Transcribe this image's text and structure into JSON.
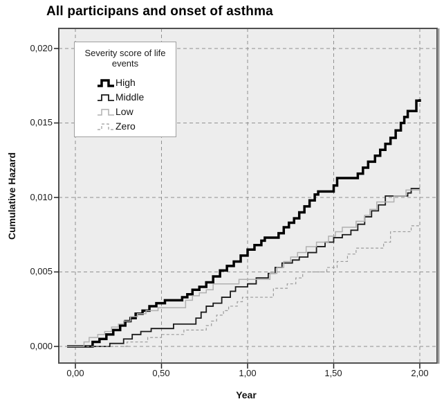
{
  "title": "All participans and onset of asthma",
  "axes": {
    "x": {
      "label": "Year",
      "ticks": [
        "0,00",
        "0,50",
        "1,00",
        "1,50",
        "2,00"
      ],
      "values": [
        0,
        0.5,
        1,
        1.5,
        2
      ]
    },
    "y": {
      "label": "Cumulative Hazard",
      "ticks": [
        "0,020",
        "0,015",
        "0,010",
        "0,005",
        "0,000"
      ],
      "values": [
        0.02,
        0.015,
        0.01,
        0.005,
        0
      ]
    }
  },
  "legend": {
    "title": "Severity score of life events",
    "entries": [
      "High",
      "Middle",
      "Low",
      "Zero"
    ]
  },
  "colors": {
    "panel_background": "#ededed",
    "gridline": "#909090",
    "frame": "#4f4f4f",
    "frame_right_edge": "#9b9b9b",
    "tick": "#222222"
  },
  "chart_data": {
    "type": "line",
    "subtype": "step-function-cumulative-hazard",
    "title": "All participans and onset of asthma",
    "xlabel": "Year",
    "ylabel": "Cumulative Hazard",
    "xlim": [
      0,
      2
    ],
    "ylim": [
      0,
      0.02
    ],
    "x_ticks": [
      0,
      0.5,
      1,
      1.5,
      2
    ],
    "y_ticks": [
      0,
      0.005,
      0.01,
      0.015,
      0.02
    ],
    "grid": "dashed-both-axes",
    "legend_position": "top-left-inside",
    "legend_title": "Severity score of life events",
    "series": [
      {
        "name": "High",
        "color": "#000000",
        "width": 3.5,
        "dash": null,
        "points": [
          [
            0,
            0
          ],
          [
            0.1,
            0.0003
          ],
          [
            0.14,
            0.0005
          ],
          [
            0.18,
            0.0008
          ],
          [
            0.22,
            0.0011
          ],
          [
            0.26,
            0.0014
          ],
          [
            0.29,
            0.0017
          ],
          [
            0.32,
            0.0019
          ],
          [
            0.35,
            0.0022
          ],
          [
            0.39,
            0.0024
          ],
          [
            0.43,
            0.0027
          ],
          [
            0.47,
            0.0029
          ],
          [
            0.52,
            0.0031
          ],
          [
            0.62,
            0.0033
          ],
          [
            0.65,
            0.0035
          ],
          [
            0.68,
            0.0038
          ],
          [
            0.72,
            0.004
          ],
          [
            0.76,
            0.0043
          ],
          [
            0.8,
            0.0047
          ],
          [
            0.84,
            0.0051
          ],
          [
            0.88,
            0.0054
          ],
          [
            0.92,
            0.0057
          ],
          [
            0.96,
            0.0061
          ],
          [
            1.0,
            0.0065
          ],
          [
            1.04,
            0.0068
          ],
          [
            1.08,
            0.0071
          ],
          [
            1.1,
            0.0073
          ],
          [
            1.18,
            0.0076
          ],
          [
            1.21,
            0.008
          ],
          [
            1.24,
            0.0083
          ],
          [
            1.27,
            0.0086
          ],
          [
            1.3,
            0.009
          ],
          [
            1.33,
            0.0094
          ],
          [
            1.36,
            0.0098
          ],
          [
            1.39,
            0.0102
          ],
          [
            1.41,
            0.0104
          ],
          [
            1.5,
            0.0108
          ],
          [
            1.52,
            0.0113
          ],
          [
            1.64,
            0.0116
          ],
          [
            1.67,
            0.012
          ],
          [
            1.7,
            0.0124
          ],
          [
            1.74,
            0.0128
          ],
          [
            1.77,
            0.0132
          ],
          [
            1.8,
            0.0136
          ],
          [
            1.83,
            0.014
          ],
          [
            1.86,
            0.0145
          ],
          [
            1.89,
            0.015
          ],
          [
            1.91,
            0.0154
          ],
          [
            1.93,
            0.0158
          ],
          [
            1.98,
            0.0165
          ],
          [
            2.0,
            0.0166
          ]
        ]
      },
      {
        "name": "Middle",
        "color": "#1a1a1a",
        "width": 1.8,
        "dash": null,
        "points": [
          [
            0,
            0
          ],
          [
            0.2,
            0.0002
          ],
          [
            0.28,
            0.0005
          ],
          [
            0.33,
            0.0008
          ],
          [
            0.38,
            0.001
          ],
          [
            0.44,
            0.0012
          ],
          [
            0.57,
            0.0015
          ],
          [
            0.7,
            0.0019
          ],
          [
            0.73,
            0.0023
          ],
          [
            0.76,
            0.0027
          ],
          [
            0.8,
            0.0029
          ],
          [
            0.85,
            0.0033
          ],
          [
            0.9,
            0.0037
          ],
          [
            0.93,
            0.004
          ],
          [
            1.0,
            0.0042
          ],
          [
            1.05,
            0.0046
          ],
          [
            1.12,
            0.0049
          ],
          [
            1.16,
            0.0053
          ],
          [
            1.2,
            0.0056
          ],
          [
            1.26,
            0.0058
          ],
          [
            1.3,
            0.006
          ],
          [
            1.35,
            0.0063
          ],
          [
            1.4,
            0.0067
          ],
          [
            1.45,
            0.007
          ],
          [
            1.5,
            0.0073
          ],
          [
            1.55,
            0.0075
          ],
          [
            1.6,
            0.0078
          ],
          [
            1.64,
            0.0082
          ],
          [
            1.68,
            0.0087
          ],
          [
            1.72,
            0.0091
          ],
          [
            1.76,
            0.0095
          ],
          [
            1.8,
            0.0101
          ],
          [
            1.93,
            0.0103
          ],
          [
            1.95,
            0.0106
          ],
          [
            2.0,
            0.0106
          ]
        ]
      },
      {
        "name": "Low",
        "color": "#b0b0b0",
        "width": 1.5,
        "dash": null,
        "points": [
          [
            0,
            0
          ],
          [
            0.05,
            0.0003
          ],
          [
            0.08,
            0.0006
          ],
          [
            0.13,
            0.0008
          ],
          [
            0.17,
            0.001
          ],
          [
            0.21,
            0.0013
          ],
          [
            0.25,
            0.0015
          ],
          [
            0.28,
            0.0017
          ],
          [
            0.32,
            0.002
          ],
          [
            0.36,
            0.0022
          ],
          [
            0.41,
            0.0024
          ],
          [
            0.48,
            0.0026
          ],
          [
            0.64,
            0.0031
          ],
          [
            0.68,
            0.0034
          ],
          [
            0.72,
            0.0036
          ],
          [
            0.76,
            0.0038
          ],
          [
            0.8,
            0.0042
          ],
          [
            0.95,
            0.0045
          ],
          [
            1.13,
            0.0049
          ],
          [
            1.17,
            0.0053
          ],
          [
            1.21,
            0.0057
          ],
          [
            1.25,
            0.006
          ],
          [
            1.29,
            0.0063
          ],
          [
            1.34,
            0.0067
          ],
          [
            1.4,
            0.007
          ],
          [
            1.47,
            0.0074
          ],
          [
            1.51,
            0.0077
          ],
          [
            1.55,
            0.008
          ],
          [
            1.63,
            0.0084
          ],
          [
            1.68,
            0.0088
          ],
          [
            1.71,
            0.0092
          ],
          [
            1.75,
            0.0097
          ],
          [
            1.85,
            0.0101
          ],
          [
            1.92,
            0.0105
          ],
          [
            2.0,
            0.0106
          ]
        ]
      },
      {
        "name": "Zero",
        "color": "#9a9a9a",
        "width": 1.2,
        "dash": "4,3",
        "points": [
          [
            0,
            0
          ],
          [
            0.3,
            0.0003
          ],
          [
            0.42,
            0.0006
          ],
          [
            0.5,
            0.0008
          ],
          [
            0.63,
            0.0011
          ],
          [
            0.76,
            0.0014
          ],
          [
            0.79,
            0.0017
          ],
          [
            0.82,
            0.0021
          ],
          [
            0.86,
            0.0024
          ],
          [
            0.89,
            0.0027
          ],
          [
            0.94,
            0.003
          ],
          [
            0.97,
            0.0033
          ],
          [
            1.15,
            0.0039
          ],
          [
            1.23,
            0.0042
          ],
          [
            1.28,
            0.0046
          ],
          [
            1.32,
            0.005
          ],
          [
            1.46,
            0.0053
          ],
          [
            1.52,
            0.0057
          ],
          [
            1.58,
            0.0062
          ],
          [
            1.63,
            0.0066
          ],
          [
            1.79,
            0.007
          ],
          [
            1.83,
            0.0077
          ],
          [
            1.95,
            0.0081
          ],
          [
            2.0,
            0.0081
          ]
        ]
      }
    ]
  }
}
